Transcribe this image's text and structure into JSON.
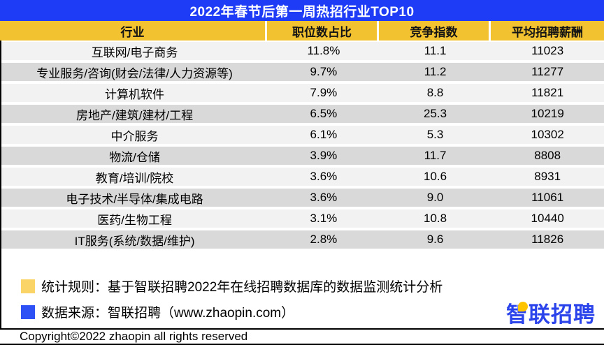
{
  "title": "2022年春节后第一周热招行业TOP10",
  "chart_data": {
    "type": "table",
    "title": "2022年春节后第一周热招行业TOP10",
    "columns": [
      "行业",
      "职位数占比",
      "竞争指数",
      "平均招聘薪酬"
    ],
    "rows": [
      [
        "互联网/电子商务",
        "11.8%",
        "11.1",
        "11023"
      ],
      [
        "专业服务/咨询(财会/法律/人力资源等)",
        "9.7%",
        "11.2",
        "11277"
      ],
      [
        "计算机软件",
        "7.9%",
        "8.8",
        "11821"
      ],
      [
        "房地产/建筑/建材/工程",
        "6.5%",
        "25.3",
        "10219"
      ],
      [
        "中介服务",
        "6.1%",
        "5.3",
        "10302"
      ],
      [
        "物流/仓储",
        "3.9%",
        "11.7",
        "8808"
      ],
      [
        "教育/培训/院校",
        "3.6%",
        "10.6",
        "8931"
      ],
      [
        "电子技术/半导体/集成电路",
        "3.6%",
        "9.0",
        "11061"
      ],
      [
        "医药/生物工程",
        "3.1%",
        "10.8",
        "10440"
      ],
      [
        "IT服务(系统/数据/维护)",
        "2.8%",
        "9.6",
        "11826"
      ]
    ],
    "layout": {
      "striped_rows": true,
      "header_position": "top"
    }
  },
  "notes": [
    {
      "text": "统计规则：基于智联招聘2022年在线招聘数据库的数据监测统计分析"
    },
    {
      "text": "数据来源：智联招聘（www.zhaopin.com）"
    }
  ],
  "copyright": "Copyright©2022 zhaopin all rights reserved",
  "logo": {
    "text": "智联招聘"
  },
  "colors": {
    "title_bar_blue": "#1e3cf6",
    "header_yellow": "#f2c230",
    "row_light": "#f2f2f2",
    "row_gray": "#d9d9d9",
    "note_bullet_yellow": "#fad466",
    "note_bullet_blue": "#2e51f5",
    "logo_blue": "#2b43ea",
    "logo_dot_yellow": "#ffc400"
  }
}
